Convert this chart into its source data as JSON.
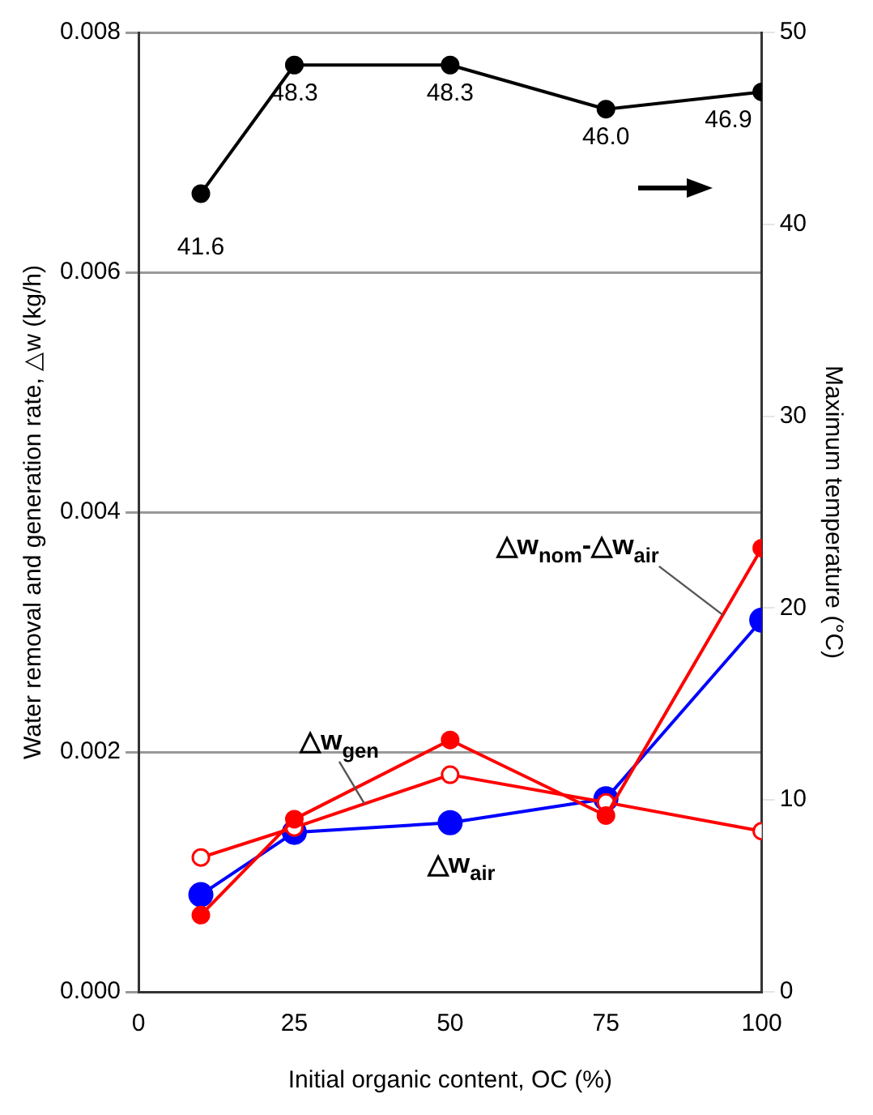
{
  "chart_data": {
    "type": "line",
    "xlabel": "Initial organic content, OC (%)",
    "ylabel": "Water removal and generation rate, △w (kg/h)",
    "y2label": "Maximum temperature (°C)",
    "x": [
      10,
      25,
      50,
      75,
      100
    ],
    "xlim": [
      0,
      100
    ],
    "xticks": [
      0,
      25,
      50,
      75,
      100
    ],
    "ylim": [
      0,
      0.008
    ],
    "yticks": [
      {
        "value": 0,
        "label": "0.000"
      },
      {
        "value": 0.002,
        "label": "0.002"
      },
      {
        "value": 0.004,
        "label": "0.004"
      },
      {
        "value": 0.006,
        "label": "0.006"
      },
      {
        "value": 0.008,
        "label": "0.008"
      }
    ],
    "y2lim": [
      0,
      50
    ],
    "y2ticks": [
      0,
      10,
      20,
      30,
      40,
      50
    ],
    "grid": "y",
    "legend": false,
    "marker": "circle",
    "line_style": "solid",
    "series": [
      {
        "color": "#000000",
        "axis": "y2",
        "values": [
          41.6,
          48.3,
          48.3,
          46.0,
          46.9
        ],
        "value_labels": [
          "41.6",
          "48.3",
          "48.3",
          "46.0",
          "46.9"
        ]
      },
      {
        "name": "△w$_{nom}$-△w$_{air}$",
        "color": "#ff0000",
        "values": [
          0.00064,
          0.00144,
          0.0021,
          0.00147,
          0.0037
        ]
      },
      {
        "name": "△w$_{gen}$",
        "color": "#ff0000",
        "values": [
          0.00112,
          0.00137,
          0.00181,
          0.00158,
          0.00134
        ]
      },
      {
        "name": "△w$_{air}$",
        "color": "#0000ff",
        "values": [
          0.00081,
          0.00133,
          0.00141,
          0.00161,
          0.0031
        ]
      }
    ]
  }
}
